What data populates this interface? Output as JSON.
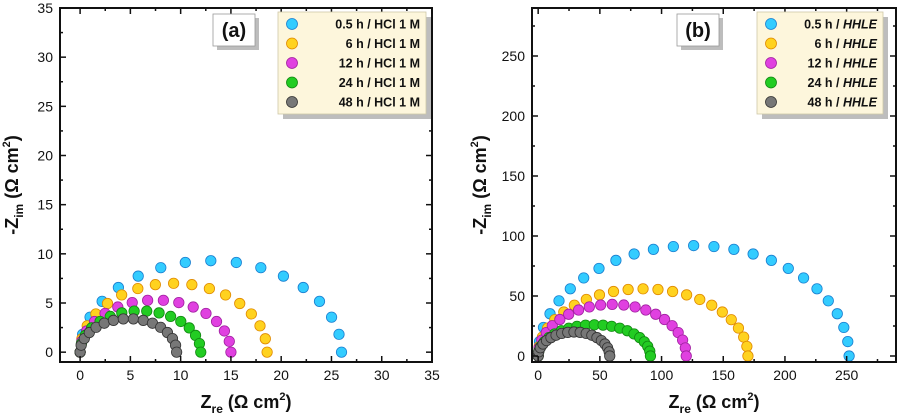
{
  "chart_data": [
    {
      "type": "scatter",
      "panel_label": "(a)",
      "xlabel_main": "Z",
      "xlabel_sub": "re",
      "xlabel_unit": "(Ω cm",
      "xlabel_sup": "2",
      "xlabel_close": ")",
      "ylabel_main": "-Z",
      "ylabel_sub": "im",
      "ylabel_unit": "(Ω cm",
      "ylabel_sup": "2",
      "ylabel_close": ")",
      "xlim": [
        -2,
        35
      ],
      "ylim": [
        -1,
        35
      ],
      "xticks": [
        0,
        5,
        10,
        15,
        20,
        25,
        30,
        35
      ],
      "xtick_labels": [
        "0",
        "5",
        "10",
        "15",
        "20",
        "25",
        "30",
        "35"
      ],
      "yticks": [
        0,
        5,
        10,
        15,
        20,
        25,
        30,
        35
      ],
      "ytick_labels": [
        "0",
        "5",
        "10",
        "15",
        "20",
        "25",
        "30",
        "35"
      ],
      "legend_position": "top-right",
      "series": [
        {
          "name": "0.5 h / HCl 1 M",
          "color": "#33ccff",
          "edge": "#1a7fd0",
          "r0": 0.0,
          "r1": 26.0,
          "peak": 9.3,
          "n": 16
        },
        {
          "name": "6 h / HCl 1 M",
          "color": "#ffd21f",
          "edge": "#e08a00",
          "r0": 0.0,
          "r1": 18.6,
          "peak": 7.0,
          "n": 16
        },
        {
          "name": "12 h / HCl 1 M",
          "color": "#e040e0",
          "edge": "#a020a0",
          "r0": 0.0,
          "r1": 15.0,
          "peak": 5.3,
          "n": 15
        },
        {
          "name": "24 h / HCl 1 M",
          "color": "#22cc22",
          "edge": "#118811",
          "r0": 0.0,
          "r1": 12.0,
          "peak": 4.2,
          "n": 15
        },
        {
          "name": "48 h / HCl 1 M",
          "color": "#777777",
          "edge": "#333333",
          "r0": 0.0,
          "r1": 9.6,
          "peak": 3.4,
          "n": 15
        }
      ]
    },
    {
      "type": "scatter",
      "panel_label": "(b)",
      "xlabel_main": "Z",
      "xlabel_sub": "re",
      "xlabel_unit": "(Ω cm",
      "xlabel_sup": "2",
      "xlabel_close": ")",
      "ylabel_main": "-Z",
      "ylabel_sub": "im",
      "ylabel_unit": "(Ω cm",
      "ylabel_sup": "2",
      "ylabel_close": ")",
      "xlim": [
        -5,
        290
      ],
      "ylim": [
        -5,
        290
      ],
      "xticks": [
        0,
        50,
        100,
        150,
        200,
        250
      ],
      "xtick_labels": [
        "0",
        "50",
        "100",
        "150",
        "200",
        "250"
      ],
      "yticks": [
        0,
        50,
        100,
        150,
        200,
        250
      ],
      "ytick_labels": [
        "0",
        "50",
        "100",
        "150",
        "200",
        "250"
      ],
      "legend_position": "top-right",
      "series": [
        {
          "name": "0.5 h / HHLE",
          "prefix": "0.5 h / ",
          "italic": "HHLE",
          "color": "#33ccff",
          "edge": "#1a7fd0",
          "r0": 0.0,
          "r1": 252.0,
          "peak": 92.0,
          "n": 24
        },
        {
          "name": "6 h / HHLE",
          "prefix": "6 h / ",
          "italic": "HHLE",
          "color": "#ffd21f",
          "edge": "#e08a00",
          "r0": 0.0,
          "r1": 170.0,
          "peak": 56.0,
          "n": 22
        },
        {
          "name": "12 h / HHLE",
          "prefix": "12 h / ",
          "italic": "HHLE",
          "color": "#e040e0",
          "edge": "#a020a0",
          "r0": 0.0,
          "r1": 120.0,
          "peak": 43.0,
          "n": 20
        },
        {
          "name": "24 h / HHLE",
          "prefix": "24 h / ",
          "italic": "HHLE",
          "color": "#22cc22",
          "edge": "#118811",
          "r0": 0.0,
          "r1": 91.0,
          "peak": 26.0,
          "n": 20
        },
        {
          "name": "48 h / HHLE",
          "prefix": "48 h / ",
          "italic": "HHLE",
          "color": "#777777",
          "edge": "#333333",
          "r0": 0.0,
          "r1": 58.0,
          "peak": 20.0,
          "n": 18
        }
      ]
    }
  ]
}
